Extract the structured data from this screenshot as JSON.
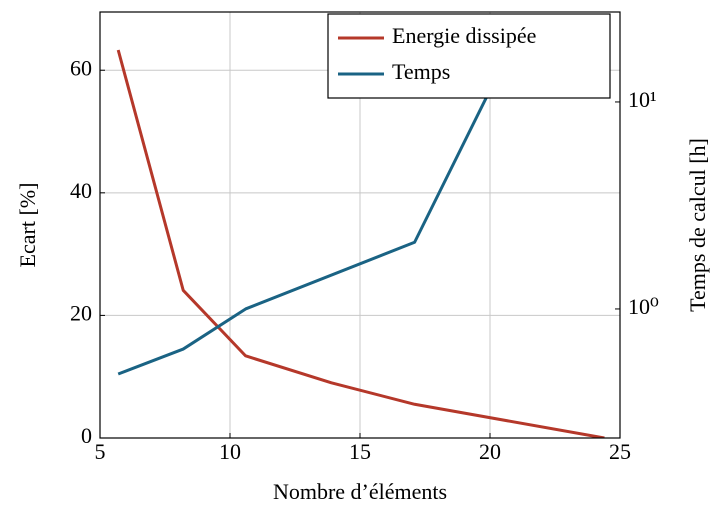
{
  "chart_data": {
    "type": "line",
    "xlabel": "Nombre d’éléments",
    "ylabel": "Ecart [%]",
    "y2label": "Temps de calcul [h]",
    "xlim": [
      5,
      25
    ],
    "xticks": [
      5,
      10,
      15,
      20,
      25
    ],
    "ylim": [
      0,
      69.5
    ],
    "yticks": [
      0,
      20,
      40,
      60
    ],
    "y2lim": [
      0.238,
      27.2
    ],
    "y2scale": "log",
    "y2ticks": [
      {
        "value": 1,
        "label": "10⁰"
      },
      {
        "value": 10,
        "label": "10¹"
      }
    ],
    "grid": true,
    "legend": "upper right",
    "series": [
      {
        "name": "Energie dissipée",
        "color": "#b5382a",
        "x": [
          5.7,
          8.2,
          10.6,
          13.9,
          17.1,
          24.4
        ],
        "values": [
          63.3,
          24.1,
          13.4,
          9,
          5.5,
          0
        ]
      },
      {
        "name": "Temps",
        "color": "#1a6384",
        "axis": "y2",
        "x": [
          5.7,
          8.2,
          10.6,
          17.1,
          20.0
        ],
        "values": [
          0.485,
          0.64,
          1.0,
          2.1,
          11.4
        ]
      }
    ]
  }
}
